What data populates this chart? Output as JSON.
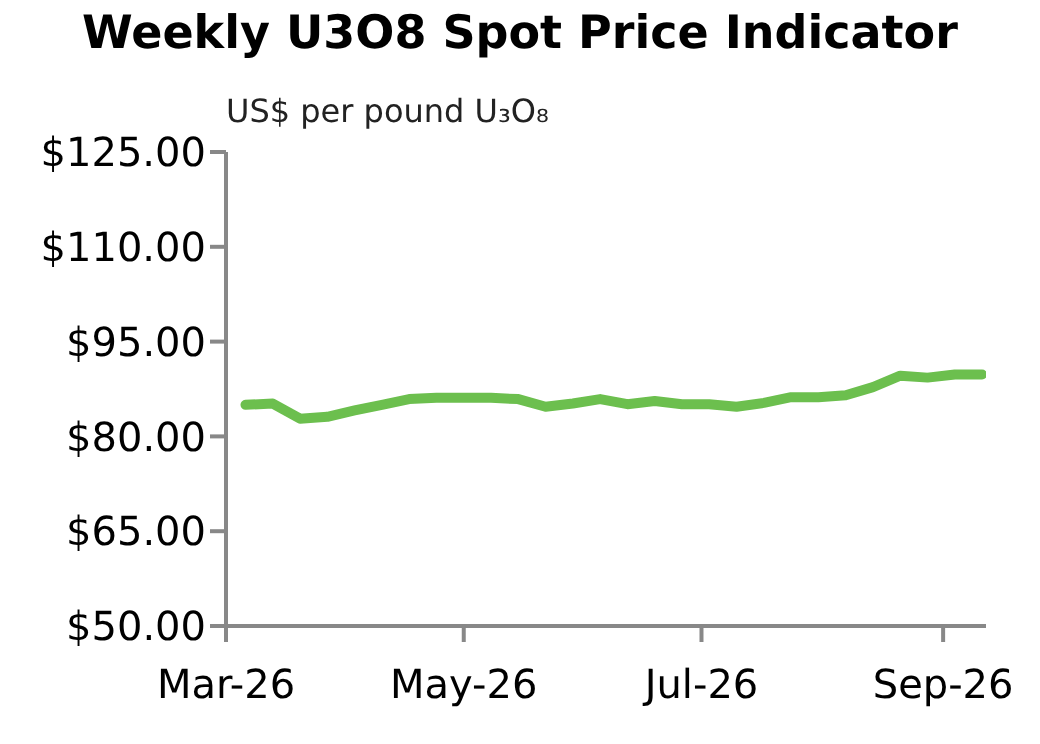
{
  "chart_data": {
    "type": "line",
    "title": "Weekly U3O8 Spot Price Indicator",
    "annotations": [
      "US$ per pound U₃O₈"
    ],
    "x": [
      "2026-03-06",
      "2026-03-13",
      "2026-03-20",
      "2026-03-27",
      "2026-04-03",
      "2026-04-10",
      "2026-04-17",
      "2026-04-24",
      "2026-05-01",
      "2026-05-08",
      "2026-05-15",
      "2026-05-22",
      "2026-05-29",
      "2026-06-05",
      "2026-06-12",
      "2026-06-19",
      "2026-06-26",
      "2026-07-03",
      "2026-07-10",
      "2026-07-17",
      "2026-07-24",
      "2026-07-31",
      "2026-08-07",
      "2026-08-14",
      "2026-08-21",
      "2026-08-28",
      "2026-09-04",
      "2026-09-11"
    ],
    "series": [
      {
        "color": "#6cbf4e",
        "values": [
          85.0,
          85.2,
          82.8,
          83.1,
          84.1,
          85.0,
          85.9,
          86.1,
          86.1,
          86.1,
          85.9,
          84.7,
          85.2,
          85.9,
          85.1,
          85.6,
          85.1,
          85.1,
          84.7,
          85.3,
          86.2,
          86.2,
          86.5,
          87.8,
          89.6,
          89.3,
          89.8,
          89.8
        ]
      }
    ],
    "xlim": [
      "2026-03-01",
      "2026-09-12"
    ],
    "xticks": [
      {
        "value": "2026-03-01",
        "label": "Mar-26"
      },
      {
        "value": "2026-05-01",
        "label": "May-26"
      },
      {
        "value": "2026-07-01",
        "label": "Jul-26"
      },
      {
        "value": "2026-09-01",
        "label": "Sep-26"
      }
    ],
    "ylim": [
      50,
      125
    ],
    "yticks": [
      {
        "value": 50,
        "label": "$50.00"
      },
      {
        "value": 65,
        "label": "$65.00"
      },
      {
        "value": 80,
        "label": "$80.00"
      },
      {
        "value": 95,
        "label": "$95.00"
      },
      {
        "value": 110,
        "label": "$110.00"
      },
      {
        "value": 125,
        "label": "$125.00"
      }
    ],
    "grid": false,
    "legend": false,
    "marker": "none",
    "line_style": "solid"
  }
}
